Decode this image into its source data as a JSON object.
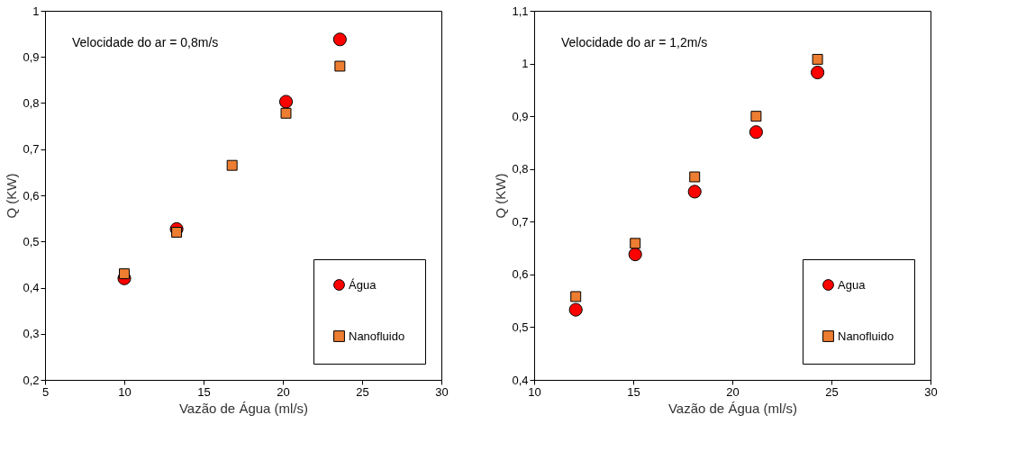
{
  "chart_data": [
    {
      "type": "scatter",
      "xlabel": "Vazão de Água (ml/s)",
      "ylabel": "Q (KW)",
      "annotations": [
        "Velocidade do ar = 0,8m/s"
      ],
      "xlim": [
        5,
        30
      ],
      "xticks": [
        5,
        10,
        15,
        20,
        25,
        30
      ],
      "ylim": [
        0.2,
        1
      ],
      "yticks": [
        {
          "value": 0.2,
          "label": "0,2"
        },
        {
          "value": 0.3,
          "label": "0,3"
        },
        {
          "value": 0.4,
          "label": "0,4"
        },
        {
          "value": 0.5,
          "label": "0,5"
        },
        {
          "value": 0.6,
          "label": "0,6"
        },
        {
          "value": 0.7,
          "label": "0,7"
        },
        {
          "value": 0.8,
          "label": "0,8"
        },
        {
          "value": 0.9,
          "label": "0,9"
        },
        1
      ],
      "grid": false,
      "legend": "bottom right",
      "series": [
        {
          "name": "Água",
          "color": "#ff0000",
          "marker": "circle",
          "x": [
            10,
            13.3,
            16.8,
            20.2,
            23.6
          ],
          "values": [
            0.42,
            0.527,
            null,
            0.803,
            0.938
          ]
        },
        {
          "name": "Nanofluido",
          "color": "#ed7d31",
          "marker": "square",
          "x": [
            10,
            13.3,
            16.8,
            20.2,
            23.6
          ],
          "values": [
            0.43,
            0.52,
            0.665,
            0.778,
            0.88
          ]
        }
      ]
    },
    {
      "type": "scatter",
      "xlabel": "Vazão de Água (ml/s)",
      "ylabel": "Q (KW)",
      "annotations": [
        "Velocidade do ar = 1,2m/s"
      ],
      "xlim": [
        10,
        30
      ],
      "xticks": [
        10,
        15,
        20,
        25,
        30
      ],
      "ylim": [
        0.4,
        1.1
      ],
      "yticks": [
        {
          "value": 0.4,
          "label": "0,4"
        },
        {
          "value": 0.5,
          "label": "0,5"
        },
        {
          "value": 0.6,
          "label": "0,6"
        },
        {
          "value": 0.7,
          "label": "0,7"
        },
        {
          "value": 0.8,
          "label": "0,8"
        },
        {
          "value": 0.9,
          "label": "0,9"
        },
        1,
        {
          "value": 1.1,
          "label": "1,1"
        }
      ],
      "grid": false,
      "legend": "bottom right",
      "series": [
        {
          "name": "Agua",
          "color": "#ff0000",
          "marker": "circle",
          "x": [
            12.1,
            15.1,
            18.1,
            21.2,
            24.3
          ],
          "values": [
            0.533,
            0.638,
            0.757,
            0.87,
            0.983
          ]
        },
        {
          "name": "Nanofluido",
          "color": "#ed7d31",
          "marker": "square",
          "x": [
            12.1,
            15.1,
            18.1,
            21.2,
            24.3
          ],
          "values": [
            0.558,
            0.659,
            0.785,
            0.9,
            1.008
          ]
        }
      ]
    }
  ]
}
